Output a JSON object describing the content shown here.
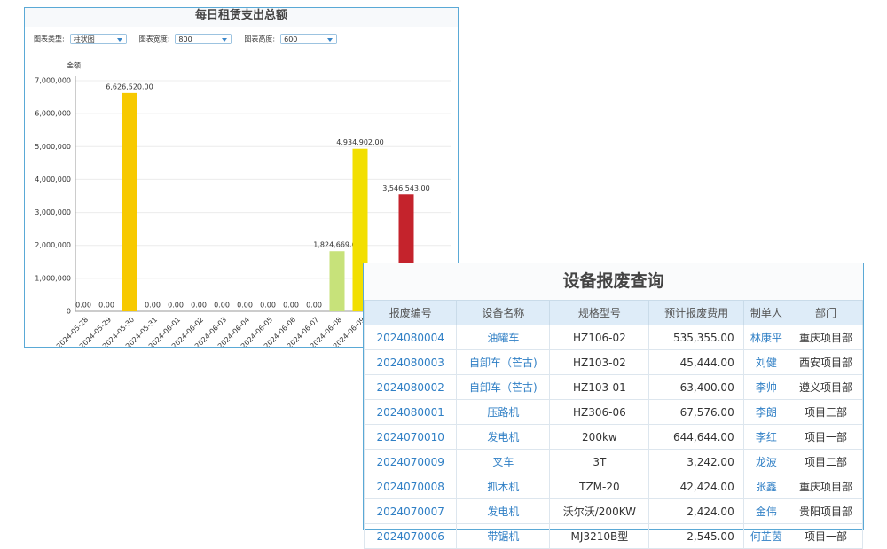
{
  "chart_panel": {
    "controls": [
      {
        "label": "图表类型:",
        "value": "柱状图"
      },
      {
        "label": "图表宽度:",
        "value": "800"
      },
      {
        "label": "图表高度:",
        "value": "600"
      }
    ],
    "chart_data": {
      "type": "bar",
      "title": "每日租赁支出总额",
      "y_label": "金额",
      "categories": [
        "2024-05-28",
        "2024-05-29",
        "2024-05-30",
        "2024-05-31",
        "2024-06-01",
        "2024-06-02",
        "2024-06-03",
        "2024-06-04",
        "2024-06-05",
        "2024-06-06",
        "2024-06-07",
        "2024-06-08",
        "2024-06-09",
        null,
        null
      ],
      "values": [
        0,
        0,
        6626520,
        0,
        0,
        0,
        0,
        0,
        0,
        0,
        0,
        1824669,
        4934902,
        null,
        3546543
      ],
      "value_labels": [
        "0.00",
        "0.00",
        "6,626,520.00",
        "0.00",
        "0.00",
        "0.00",
        "0.00",
        "0.00",
        "0.00",
        "0.00",
        "0.00",
        "1,824,669.00",
        "4,934,902.00",
        null,
        "3,546,543.00"
      ],
      "colors": [
        "#f7c900",
        "#f7c900",
        "#f7c900",
        "#f7c900",
        "#f7c900",
        "#f7c900",
        "#f7c900",
        "#f7c900",
        "#f7c900",
        "#f7c900",
        "#f7c900",
        "#c7e27a",
        "#f2df00",
        "#f2df00",
        "#c4232c"
      ],
      "ylim": [
        0,
        7000000
      ],
      "yticks": [
        0,
        {
          "value": 1000000,
          "label": "1,000,000"
        },
        {
          "value": 2000000,
          "label": "2,000,000"
        },
        {
          "value": 3000000,
          "label": "3,000,000"
        },
        {
          "value": 4000000,
          "label": "4,000,000"
        },
        {
          "value": 5000000,
          "label": "5,000,000"
        },
        {
          "value": 6000000,
          "label": "6,000,000"
        },
        {
          "value": 7000000,
          "label": "7,000,000"
        }
      ],
      "grid": true
    }
  },
  "table": {
    "title": "设备报废查询",
    "columns": [
      "报废编号",
      "设备名称",
      "规格型号",
      "预计报废费用",
      "制单人",
      "部门"
    ],
    "rows": [
      [
        "2024080004",
        "油罐车",
        "HZ106-02",
        "535,355.00",
        "林康平",
        "重庆项目部"
      ],
      [
        "2024080003",
        "自卸车（芒古)",
        "HZ103-02",
        "45,444.00",
        "刘健",
        "西安项目部"
      ],
      [
        "2024080002",
        "自卸车（芒古)",
        "HZ103-01",
        "63,400.00",
        "李帅",
        "遵义项目部"
      ],
      [
        "2024080001",
        "压路机",
        "HZ306-06",
        "67,576.00",
        "李朗",
        "项目三部"
      ],
      [
        "2024070010",
        "发电机",
        "200kw",
        "644,644.00",
        "李红",
        "项目一部"
      ],
      [
        "2024070009",
        "叉车",
        "3T",
        "3,242.00",
        "龙波",
        "项目二部"
      ],
      [
        "2024070008",
        "抓木机",
        "TZM-20",
        "42,424.00",
        "张鑫",
        "重庆项目部"
      ],
      [
        "2024070007",
        "发电机",
        "沃尔沃/200KW",
        "2,424.00",
        "金伟",
        "贵阳项目部"
      ],
      [
        "2024070006",
        "带锯机",
        "MJ3210B型",
        "2,545.00",
        "何芷茵",
        "项目一部"
      ]
    ]
  }
}
